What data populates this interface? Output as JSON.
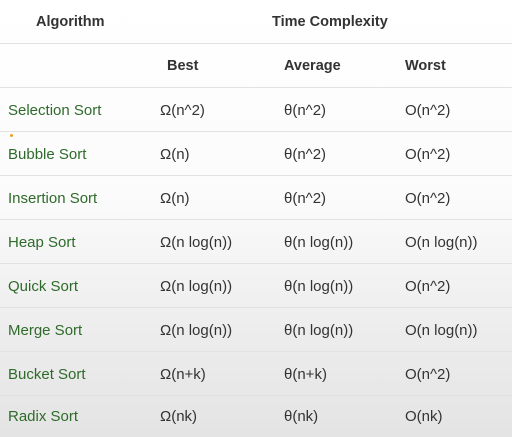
{
  "header": {
    "algorithm": "Algorithm",
    "time_complexity": "Time Complexity",
    "best": "Best",
    "average": "Average",
    "worst": "Worst"
  },
  "rows": [
    {
      "name": "Selection Sort",
      "best": "Ω(n^2)",
      "average": "θ(n^2)",
      "worst": "O(n^2)"
    },
    {
      "name": "Bubble Sort",
      "best": "Ω(n)",
      "average": "θ(n^2)",
      "worst": "O(n^2)"
    },
    {
      "name": "Insertion Sort",
      "best": "Ω(n)",
      "average": "θ(n^2)",
      "worst": "O(n^2)"
    },
    {
      "name": "Heap Sort",
      "best": "Ω(n log(n))",
      "average": "θ(n log(n))",
      "worst": "O(n log(n))"
    },
    {
      "name": "Quick Sort",
      "best": "Ω(n log(n))",
      "average": "θ(n log(n))",
      "worst": "O(n^2)"
    },
    {
      "name": "Merge Sort",
      "best": "Ω(n log(n))",
      "average": "θ(n log(n))",
      "worst": "O(n log(n))"
    },
    {
      "name": "Bucket Sort",
      "best": "Ω(n+k)",
      "average": "θ(n+k)",
      "worst": "O(n^2)"
    },
    {
      "name": "Radix Sort",
      "best": "Ω(nk)",
      "average": "θ(nk)",
      "worst": "O(nk)"
    }
  ],
  "colors": {
    "algorithm_name": "#2e6b2a",
    "text": "#333333",
    "divider": "#e2e2e2"
  }
}
